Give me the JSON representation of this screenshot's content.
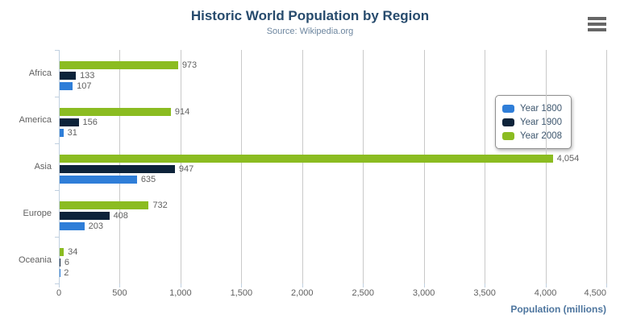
{
  "chart_data": {
    "type": "bar",
    "title": "Historic World Population by Region",
    "subtitle": "Source: Wikipedia.org",
    "categories": [
      "Africa",
      "America",
      "Asia",
      "Europe",
      "Oceania"
    ],
    "series": [
      {
        "name": "Year 1800",
        "color": "#2f7ed8",
        "values": [
          107,
          31,
          635,
          203,
          2
        ]
      },
      {
        "name": "Year 1900",
        "color": "#0d233a",
        "values": [
          133,
          156,
          947,
          408,
          6
        ]
      },
      {
        "name": "Year 2008",
        "color": "#8bbc21",
        "values": [
          973,
          914,
          4054,
          732,
          34
        ]
      }
    ],
    "bar_order_top_to_bottom": [
      "Year 2008",
      "Year 1900",
      "Year 1800"
    ],
    "data_labels": true,
    "data_label_texts": {
      "Africa": {
        "Year 1800": "107",
        "Year 1900": "133",
        "Year 2008": "973"
      },
      "America": {
        "Year 1800": "31",
        "Year 1900": "156",
        "Year 2008": "914"
      },
      "Asia": {
        "Year 1800": "635",
        "Year 1900": "947",
        "Year 2008": "4,054"
      },
      "Europe": {
        "Year 1800": "203",
        "Year 1900": "408",
        "Year 2008": "732"
      },
      "Oceania": {
        "Year 1800": "2",
        "Year 1900": "6",
        "Year 2008": "34"
      }
    },
    "xlabel": "Population (millions)",
    "ylabel": "",
    "xlim": [
      0,
      4500
    ],
    "x_ticks": [
      {
        "value": 0,
        "label": "0"
      },
      {
        "value": 500,
        "label": "500"
      },
      {
        "value": 1000,
        "label": "1,000"
      },
      {
        "value": 1500,
        "label": "1,500"
      },
      {
        "value": 2000,
        "label": "2,000"
      },
      {
        "value": 2500,
        "label": "2,500"
      },
      {
        "value": 3000,
        "label": "3,000"
      },
      {
        "value": 3500,
        "label": "3,500"
      },
      {
        "value": 4000,
        "label": "4,000"
      },
      {
        "value": 4500,
        "label": "4,500"
      }
    ],
    "grid": true,
    "legend_position": "right-inside"
  },
  "icons": {
    "context_menu": "hamburger-menu"
  },
  "colors": {
    "background": "#ffffff",
    "title": "#274b6d",
    "subtitle": "#6d869f",
    "axis_title": "#4d759e",
    "tick_label": "#606060",
    "category_label": "#606060",
    "data_label": "#606060",
    "gridline": "#c9c9c9",
    "axis_line": "#c0d0e0",
    "tick": "#c0d0e0",
    "legend_border": "#909090",
    "legend_text": "#3e576f",
    "menu_icon": "#666666"
  }
}
